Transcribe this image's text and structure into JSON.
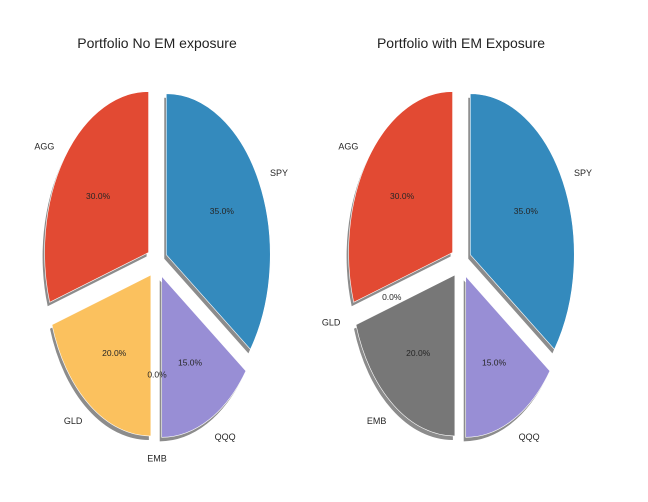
{
  "colors": {
    "AGG": "#e24a33",
    "GLD": "#fbc15e",
    "EMB": "#777777",
    "QQQ": "#988ed5",
    "SPY": "#348abd",
    "shadow": "#8c8c8c",
    "edge": "#ffffff"
  },
  "chart_data": [
    {
      "type": "pie",
      "title": "Portfolio No EM exposure",
      "labels": [
        "AGG",
        "GLD",
        "EMB",
        "QQQ",
        "SPY"
      ],
      "values": [
        30.0,
        20.0,
        0.0,
        15.0,
        35.0
      ],
      "value_labels": [
        "30.0%",
        "20.0%",
        "0.0%",
        "15.0%",
        "35.0%"
      ],
      "exploded": true,
      "shadow": true
    },
    {
      "type": "pie",
      "title": "Portfolio with EM Exposure",
      "labels": [
        "AGG",
        "GLD",
        "EMB",
        "QQQ",
        "SPY"
      ],
      "values": [
        30.0,
        0.0,
        20.0,
        15.0,
        35.0
      ],
      "value_labels": [
        "30.0%",
        "0.0%",
        "20.0%",
        "15.0%",
        "35.0%"
      ],
      "exploded": true,
      "shadow": true
    }
  ]
}
